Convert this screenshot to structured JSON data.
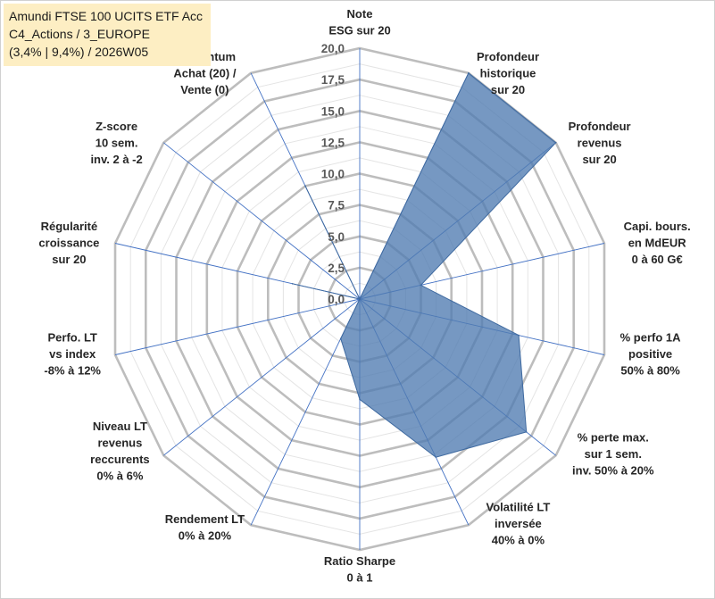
{
  "header": {
    "line1": "Amundi FTSE 100 UCITS ETF Acc",
    "line2": "C4_Actions / 3_EUROPE",
    "line3": "(3,4% | 9,4%) / 2026W05"
  },
  "colors": {
    "fill": "#4f7bb1",
    "fill_stroke": "#3f6aa0",
    "grid": "#bfbfbf",
    "spoke": "#4472c4"
  },
  "chart_data": {
    "type": "radar",
    "title": "Amundi FTSE 100 UCITS ETF Acc",
    "rlim": [
      0,
      20
    ],
    "rticks": [
      "0,0",
      "2,5",
      "5,0",
      "7,5",
      "10,0",
      "12,5",
      "15,0",
      "17,5",
      "20,0"
    ],
    "axes": [
      {
        "label": [
          "Note",
          "ESG sur 20"
        ],
        "value": 0
      },
      {
        "label": [
          "Profondeur",
          "historique",
          "sur 20"
        ],
        "value": 20
      },
      {
        "label": [
          "Profondeur",
          "revenus",
          "sur 20"
        ],
        "value": 20
      },
      {
        "label": [
          "Capi. bours.",
          "en MdEUR",
          "0 à 60 G€"
        ],
        "value": 5
      },
      {
        "label": [
          "% perfo 1A",
          "positive",
          "50% à 80%"
        ],
        "value": 13
      },
      {
        "label": [
          "% perte max.",
          "sur 1 sem.",
          "inv. 50% à 20%"
        ],
        "value": 17
      },
      {
        "label": [
          "Volatilité LT",
          "inversée",
          "40% à 0%"
        ],
        "value": 14
      },
      {
        "label": [
          "Ratio Sharpe",
          "0 à 1"
        ],
        "value": 8
      },
      {
        "label": [
          "Rendement LT",
          "0% à 20%"
        ],
        "value": 3.5
      },
      {
        "label": [
          "Niveau LT",
          "revenus",
          "reccurents",
          "0% à 6%"
        ],
        "value": 0
      },
      {
        "label": [
          "Perfo. LT",
          "vs index",
          "-8% à 12%"
        ],
        "value": 0
      },
      {
        "label": [
          "Régularité",
          "croissance",
          "sur 20"
        ],
        "value": 5.5
      },
      {
        "label": [
          "Z-score",
          "10 sem.",
          "inv. 2 à -2"
        ],
        "value": 0
      },
      {
        "label": [
          "Momentum",
          "Achat (20) /",
          "Vente (0)"
        ],
        "value": 10
      }
    ]
  }
}
